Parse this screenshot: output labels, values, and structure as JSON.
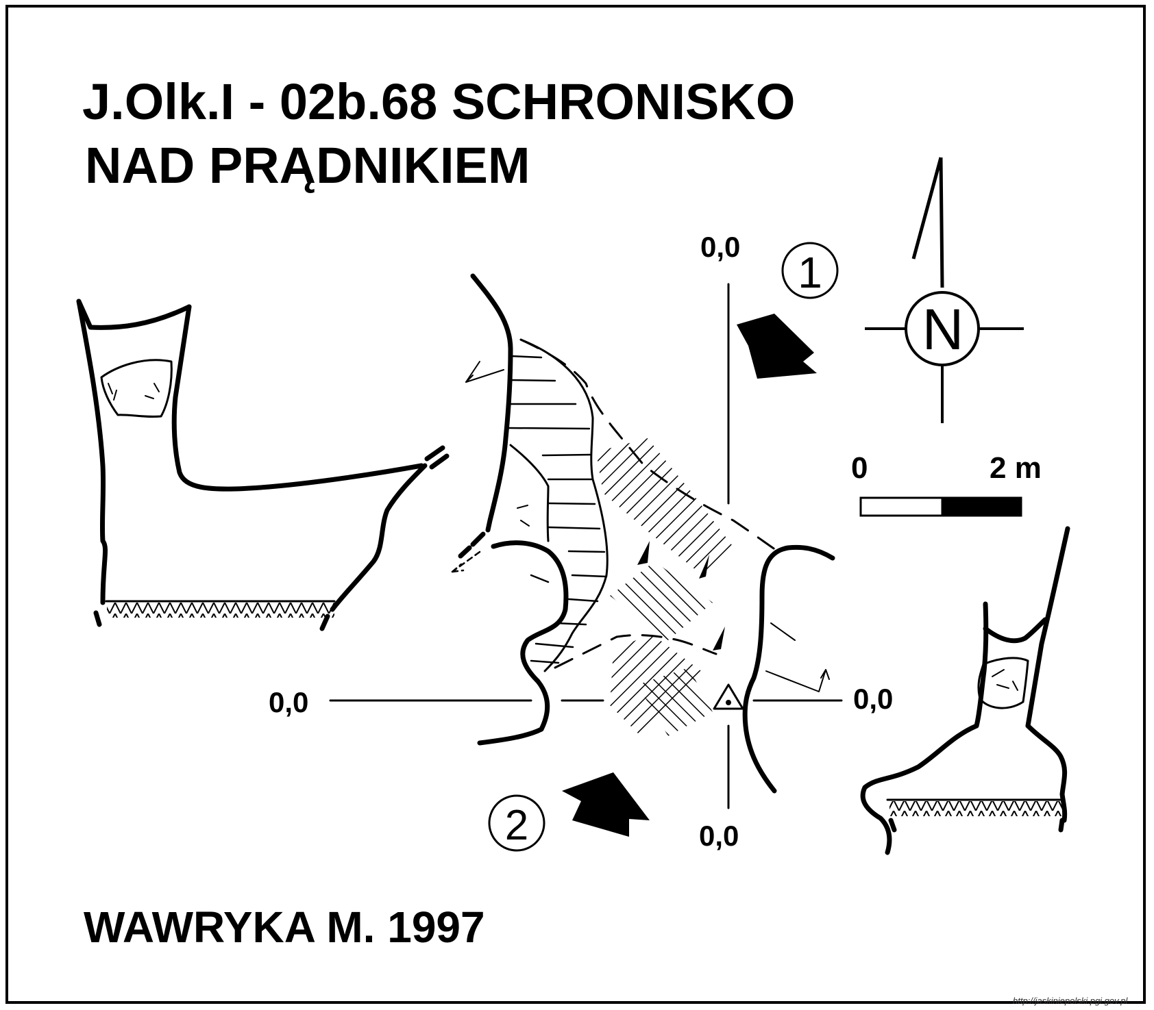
{
  "title": {
    "line1": "J.Olk.I - 02b.68  SCHRONISKO",
    "line2": "NAD PRĄDNIKIEM"
  },
  "author": "WAWRYKA M. 1997",
  "coordinates": {
    "top": "0,0",
    "left": "0,0",
    "right": "0,0",
    "bottom": "0,0"
  },
  "compass": {
    "letter": "N"
  },
  "scale": {
    "start": "0",
    "end": "2 m"
  },
  "markers": {
    "view1": "1",
    "view2": "2"
  },
  "source": "http://jaskiniepolski.pgi.gov.pl",
  "colors": {
    "ink": "#000000",
    "paper": "#ffffff"
  }
}
